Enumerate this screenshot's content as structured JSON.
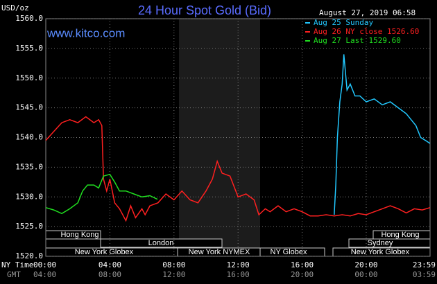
{
  "chart_data": {
    "type": "line",
    "title": "24 Hour Spot Gold (Bid)",
    "subtitle": "August 27, 2019 06:58",
    "website": "www.kitco.com",
    "ylabel": "USD/oz",
    "xlabel": "NY Time",
    "x2label": "GMT",
    "xlim": [
      0,
      23.983
    ],
    "ylim": [
      1520,
      1560
    ],
    "yticks": [
      {
        "value": 1520,
        "label": "1520.0"
      },
      {
        "value": 1525,
        "label": "1525.0"
      },
      {
        "value": 1530,
        "label": "1530.0"
      },
      {
        "value": 1535,
        "label": "1535.0"
      },
      {
        "value": 1540,
        "label": "1540.0"
      },
      {
        "value": 1545,
        "label": "1545.0"
      },
      {
        "value": 1550,
        "label": "1550.0"
      },
      {
        "value": 1555,
        "label": "1555.0"
      },
      {
        "value": 1560,
        "label": "1560.0"
      }
    ],
    "xticks": [
      {
        "value": 0,
        "label": "00:00"
      },
      {
        "value": 4,
        "label": "04:00"
      },
      {
        "value": 8,
        "label": "08:00"
      },
      {
        "value": 12,
        "label": "12:00"
      },
      {
        "value": 16,
        "label": "16:00"
      },
      {
        "value": 20,
        "label": "20:00"
      },
      {
        "value": 23.983,
        "label": "23:59"
      }
    ],
    "x2ticks": [
      {
        "value": 0,
        "label": "04:00"
      },
      {
        "value": 4,
        "label": "08:00"
      },
      {
        "value": 8,
        "label": "12:00"
      },
      {
        "value": 12,
        "label": "16:00"
      },
      {
        "value": 16,
        "label": "20:00"
      },
      {
        "value": 20,
        "label": "00:00"
      },
      {
        "value": 23.983,
        "label": "03:59"
      }
    ],
    "grid": true,
    "series": [
      {
        "name": "Aug 25 Sunday",
        "color": "#22c8ff",
        "x": [
          18.0,
          18.1,
          18.2,
          18.35,
          18.5,
          18.6,
          18.8,
          19.0,
          19.3,
          19.6,
          20.0,
          20.5,
          21.0,
          21.5,
          22.0,
          22.5,
          22.8,
          23.1,
          23.4,
          23.7,
          23.983
        ],
        "values": [
          1527,
          1532,
          1540,
          1546,
          1549,
          1554,
          1548,
          1549,
          1547,
          1547,
          1546,
          1546.5,
          1545.5,
          1546,
          1545,
          1544,
          1543,
          1542,
          1540,
          1539.5,
          1539
        ]
      },
      {
        "name": "Aug 26 NY close 1526.60",
        "color": "#ff2020",
        "x": [
          0,
          0.5,
          1.0,
          1.5,
          2.0,
          2.5,
          3.0,
          3.3,
          3.5,
          3.6,
          3.8,
          4.0,
          4.3,
          4.6,
          5.0,
          5.3,
          5.6,
          6.0,
          6.2,
          6.5,
          7.0,
          7.5,
          8.0,
          8.5,
          9.0,
          9.5,
          10.0,
          10.4,
          10.7,
          11.0,
          11.5,
          12.0,
          12.5,
          13.0,
          13.3,
          13.7,
          14.0,
          14.5,
          15.0,
          15.5,
          16.0,
          16.5,
          17.0,
          17.5,
          18.0,
          18.5,
          19.0,
          19.5,
          20.0,
          20.5,
          21.0,
          21.5,
          22.0,
          22.5,
          23.0,
          23.5,
          23.983
        ],
        "values": [
          1539.5,
          1541,
          1542.5,
          1543,
          1542.5,
          1543.5,
          1542.5,
          1543,
          1542,
          1533,
          1531,
          1533,
          1529,
          1528,
          1526,
          1528.5,
          1526.5,
          1528,
          1527,
          1528.5,
          1529,
          1530.5,
          1529.5,
          1531,
          1529.5,
          1529,
          1531,
          1533,
          1536,
          1534,
          1533.5,
          1530,
          1530.5,
          1529.5,
          1527,
          1528,
          1527.5,
          1528.5,
          1527.5,
          1528,
          1527.5,
          1526.8,
          1526.8,
          1527,
          1526.8,
          1527,
          1526.8,
          1527.2,
          1527,
          1527.5,
          1528,
          1528.5,
          1528,
          1527.3,
          1528,
          1527.8,
          1528.2
        ]
      },
      {
        "name": "Aug 27 Last 1529.60",
        "color": "#20e020",
        "x": [
          0,
          0.5,
          1.0,
          1.5,
          2.0,
          2.3,
          2.6,
          3.0,
          3.3,
          3.6,
          4.0,
          4.3,
          4.6,
          5.0,
          5.5,
          6.0,
          6.5,
          6.97
        ],
        "values": [
          1528.2,
          1527.8,
          1527.2,
          1528,
          1529,
          1531,
          1532,
          1532,
          1531.5,
          1533.5,
          1533.8,
          1532.5,
          1531,
          1531,
          1530.5,
          1530,
          1530.2,
          1529.6
        ]
      }
    ],
    "sessions": [
      "Hong Kong",
      "London",
      "New York Globex",
      "New York NYMEX",
      "NY Globex",
      "Hong Kong",
      "Sydney",
      "New York Globex"
    ]
  }
}
